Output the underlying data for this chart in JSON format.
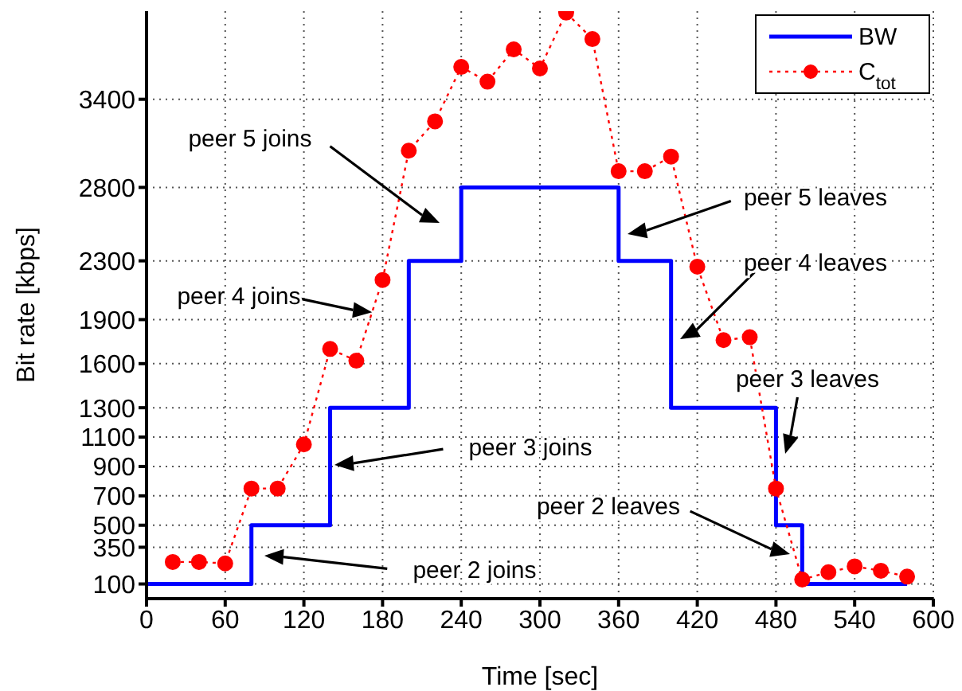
{
  "chart_data": {
    "type": "line",
    "xlabel": "Time [sec]",
    "ylabel": "Bit rate [kbps]",
    "xlim": [
      0,
      600
    ],
    "xticks": [
      0,
      60,
      120,
      180,
      240,
      300,
      360,
      420,
      480,
      540,
      600
    ],
    "ylim": [
      0,
      4000
    ],
    "yticks": [
      100,
      350,
      500,
      700,
      900,
      1100,
      1300,
      1600,
      1900,
      2300,
      2800,
      3400
    ],
    "grid": true,
    "legend": "top right",
    "series": [
      {
        "name": "BW",
        "type": "step",
        "color": "#0000ff",
        "line_style": "solid",
        "marker": "none",
        "x": [
          0,
          80,
          140,
          200,
          240,
          360,
          400,
          480,
          500,
          580
        ],
        "values": [
          100,
          500,
          1300,
          2300,
          2800,
          2300,
          1300,
          500,
          100,
          100
        ]
      },
      {
        "name": "C$_{tot}$",
        "color": "#ff0000",
        "line_style": "dotted",
        "marker": "circle",
        "x": [
          20,
          40,
          60,
          80,
          100,
          120,
          140,
          160,
          180,
          200,
          220,
          240,
          260,
          280,
          300,
          320,
          340,
          360,
          380,
          400,
          420,
          440,
          460,
          480,
          500,
          520,
          540,
          560,
          580
        ],
        "values": [
          250,
          250,
          240,
          750,
          750,
          1050,
          1700,
          1620,
          2170,
          3050,
          3250,
          3620,
          3520,
          3740,
          3610,
          3990,
          3810,
          2910,
          2910,
          3010,
          2260,
          1760,
          1780,
          750,
          130,
          180,
          220,
          190,
          150
        ]
      }
    ],
    "annotations": [
      "peer 5 joins",
      {
        "text": "peer 4 joins",
        "x": 172,
        "y": 1950
      },
      "peer 3 joins",
      "peer 2 joins",
      "peer 5 leaves",
      "peer 4 leaves",
      "peer 3 leaves",
      "peer 2 leaves"
    ]
  }
}
